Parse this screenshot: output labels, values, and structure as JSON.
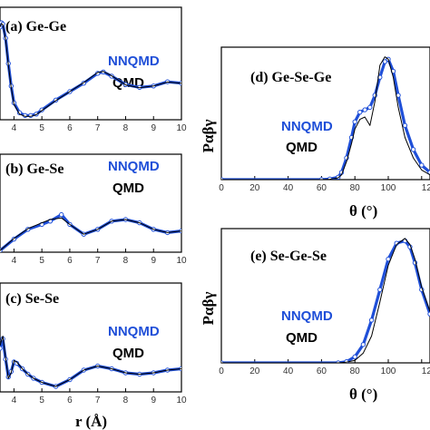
{
  "colors": {
    "nnqmd": "#1f4fd8",
    "qmd": "#000000",
    "axis": "#000000"
  },
  "chart_data": [
    {
      "type": "line",
      "title": "(a) Ge-Ge",
      "xlabel": "",
      "ylabel": "",
      "xlim": [
        3.5,
        10
      ],
      "ylim": [
        0,
        4
      ],
      "xticks": [
        "4",
        "5",
        "6",
        "7",
        "8",
        "9",
        "10"
      ],
      "series": [
        {
          "name": "NNQMD",
          "x": [
            3.5,
            3.55,
            3.6,
            3.7,
            3.8,
            3.9,
            4.0,
            4.2,
            4.4,
            4.6,
            4.8,
            5.0,
            5.5,
            6.0,
            6.5,
            7.0,
            7.2,
            7.5,
            8.0,
            8.5,
            9.0,
            9.5,
            10.0
          ],
          "y": [
            3.3,
            3.45,
            3.4,
            2.9,
            2.0,
            1.2,
            0.6,
            0.25,
            0.15,
            0.15,
            0.2,
            0.35,
            0.7,
            1.0,
            1.3,
            1.65,
            1.7,
            1.55,
            1.25,
            1.15,
            1.2,
            1.35,
            1.3
          ]
        },
        {
          "name": "QMD",
          "x": [
            3.5,
            3.55,
            3.6,
            3.7,
            3.8,
            3.9,
            4.0,
            4.2,
            4.4,
            4.6,
            4.8,
            5.0,
            5.5,
            6.0,
            6.5,
            7.0,
            7.2,
            7.5,
            8.0,
            8.5,
            9.0,
            9.5,
            10.0
          ],
          "y": [
            3.3,
            3.42,
            3.38,
            2.85,
            1.95,
            1.15,
            0.55,
            0.2,
            0.12,
            0.12,
            0.18,
            0.33,
            0.68,
            1.0,
            1.32,
            1.68,
            1.72,
            1.56,
            1.24,
            1.14,
            1.2,
            1.34,
            1.3
          ]
        }
      ]
    },
    {
      "type": "line",
      "title": "(b) Ge-Se",
      "xlabel": "",
      "ylabel": "",
      "xlim": [
        3.5,
        10
      ],
      "ylim": [
        0,
        3
      ],
      "xticks": [
        "4",
        "5",
        "6",
        "7",
        "8",
        "9",
        "10"
      ],
      "series": [
        {
          "name": "NNQMD",
          "x": [
            3.5,
            4.0,
            4.5,
            5.0,
            5.3,
            5.7,
            6.0,
            6.5,
            7.0,
            7.5,
            8.0,
            8.5,
            9.0,
            9.5,
            10.0
          ],
          "y": [
            0.05,
            0.4,
            0.7,
            0.85,
            0.95,
            1.15,
            0.85,
            0.55,
            0.7,
            0.95,
            1.0,
            0.9,
            0.7,
            0.6,
            0.65
          ]
        },
        {
          "name": "QMD",
          "x": [
            3.5,
            4.0,
            4.5,
            5.0,
            5.3,
            5.7,
            6.0,
            6.5,
            7.0,
            7.5,
            8.0,
            8.5,
            9.0,
            9.5,
            10.0
          ],
          "y": [
            0.05,
            0.42,
            0.72,
            0.9,
            1.0,
            1.05,
            0.85,
            0.55,
            0.7,
            0.95,
            1.0,
            0.9,
            0.7,
            0.6,
            0.65
          ]
        }
      ]
    },
    {
      "type": "line",
      "title": "(c) Se-Se",
      "xlabel": "r (Å)",
      "ylabel": "",
      "xlim": [
        3.5,
        10
      ],
      "ylim": [
        0,
        4
      ],
      "xticks": [
        "4",
        "5",
        "6",
        "7",
        "8",
        "9",
        "10"
      ],
      "series": [
        {
          "name": "NNQMD",
          "x": [
            3.5,
            3.6,
            3.7,
            3.8,
            3.9,
            4.0,
            4.1,
            4.3,
            4.5,
            4.7,
            5.0,
            5.5,
            6.0,
            6.5,
            7.0,
            7.5,
            8.0,
            8.5,
            9.0,
            9.5,
            10.0
          ],
          "y": [
            1.6,
            1.95,
            1.2,
            0.55,
            0.75,
            1.1,
            1.05,
            0.85,
            0.65,
            0.5,
            0.35,
            0.2,
            0.45,
            0.8,
            0.95,
            0.85,
            0.7,
            0.65,
            0.7,
            0.8,
            0.85
          ]
        },
        {
          "name": "QMD",
          "x": [
            3.5,
            3.6,
            3.7,
            3.8,
            3.9,
            4.0,
            4.1,
            4.3,
            4.5,
            4.7,
            5.0,
            5.5,
            6.0,
            6.5,
            7.0,
            7.5,
            8.0,
            8.5,
            9.0,
            9.5,
            10.0
          ],
          "y": [
            1.7,
            2.05,
            1.25,
            0.5,
            0.7,
            1.15,
            1.1,
            0.85,
            0.65,
            0.5,
            0.35,
            0.2,
            0.45,
            0.8,
            0.95,
            0.85,
            0.7,
            0.65,
            0.7,
            0.8,
            0.85
          ]
        }
      ]
    },
    {
      "type": "line",
      "title": "(d) Ge-Se-Ge",
      "xlabel": "θ (°)",
      "ylabel": "Pαβγ",
      "xlim": [
        0,
        125
      ],
      "ylim": [
        0,
        1.1
      ],
      "xticks": [
        "0",
        "20",
        "40",
        "60",
        "80",
        "100",
        "12"
      ],
      "series": [
        {
          "name": "NNQMD",
          "x": [
            0,
            60,
            65,
            70,
            72,
            75,
            78,
            80,
            83,
            86,
            89,
            92,
            95,
            98,
            100,
            103,
            106,
            110,
            115,
            120,
            125
          ],
          "y": [
            0,
            0,
            0.005,
            0.02,
            0.06,
            0.18,
            0.35,
            0.48,
            0.56,
            0.58,
            0.6,
            0.7,
            0.85,
            0.98,
            1.0,
            0.9,
            0.7,
            0.45,
            0.25,
            0.12,
            0.06
          ]
        },
        {
          "name": "QMD",
          "x": [
            0,
            60,
            65,
            70,
            72,
            75,
            78,
            80,
            83,
            86,
            89,
            92,
            95,
            98,
            100,
            103,
            106,
            110,
            115,
            120,
            125
          ],
          "y": [
            0,
            0,
            0.003,
            0.015,
            0.04,
            0.15,
            0.3,
            0.42,
            0.5,
            0.52,
            0.45,
            0.65,
            0.95,
            1.02,
            1.0,
            0.85,
            0.6,
            0.35,
            0.18,
            0.08,
            0.04
          ]
        }
      ]
    },
    {
      "type": "line",
      "title": "(e) Se-Ge-Se",
      "xlabel": "θ (°)",
      "ylabel": "Pαβγ",
      "xlim": [
        0,
        125
      ],
      "ylim": [
        0,
        1.1
      ],
      "xticks": [
        "0",
        "20",
        "40",
        "60",
        "80",
        "100",
        "12"
      ],
      "series": [
        {
          "name": "NNQMD",
          "x": [
            0,
            70,
            75,
            80,
            85,
            90,
            95,
            100,
            105,
            110,
            113,
            116,
            120,
            125
          ],
          "y": [
            0,
            0,
            0.01,
            0.05,
            0.15,
            0.35,
            0.6,
            0.85,
            0.98,
            1.0,
            0.95,
            0.82,
            0.6,
            0.4
          ]
        },
        {
          "name": "QMD",
          "x": [
            0,
            70,
            75,
            80,
            85,
            90,
            95,
            100,
            105,
            110,
            113,
            116,
            120,
            125
          ],
          "y": [
            0,
            0,
            0.005,
            0.02,
            0.08,
            0.22,
            0.5,
            0.8,
            0.97,
            1.02,
            0.97,
            0.85,
            0.62,
            0.42
          ]
        }
      ]
    }
  ]
}
